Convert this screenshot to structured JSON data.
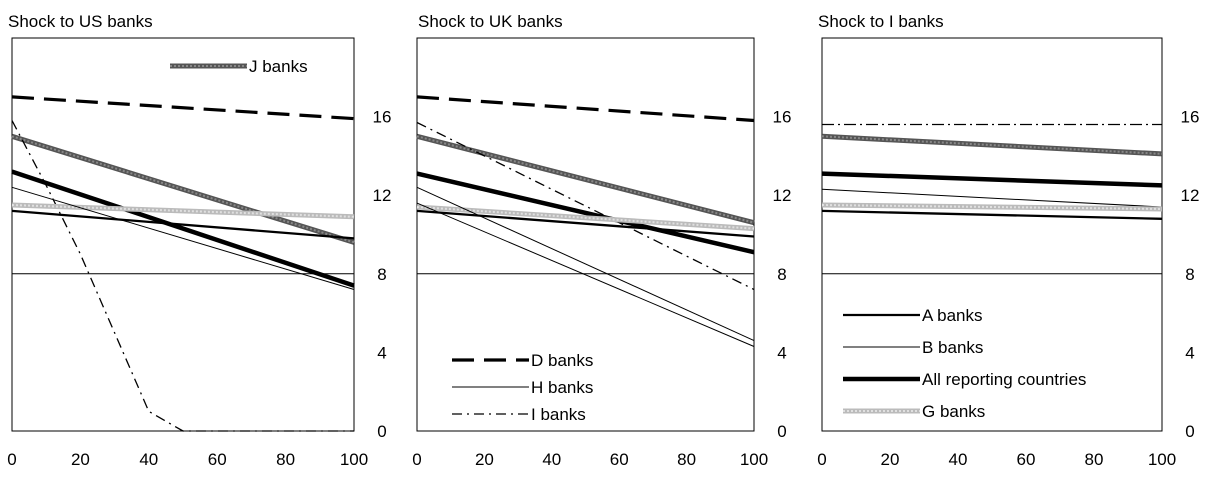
{
  "chart_data": [
    {
      "type": "line",
      "title": "Shock to US banks",
      "x_ticks": [
        0,
        20,
        40,
        60,
        80,
        100
      ],
      "y_ticks": [
        0,
        4,
        8,
        12,
        16
      ],
      "xlim": [
        0,
        100
      ],
      "ylim": [
        0,
        20
      ],
      "grid": false,
      "reference_line_y": 8,
      "legend": {
        "placement": "top-right",
        "entries": [
          "J banks"
        ]
      },
      "series": [
        {
          "name": "D banks",
          "style": "dashed",
          "x": [
            0,
            100
          ],
          "y": [
            17.0,
            15.9
          ]
        },
        {
          "name": "J banks",
          "style": "gray-thick",
          "x": [
            0,
            100
          ],
          "y": [
            15.0,
            9.6
          ]
        },
        {
          "name": "I banks",
          "style": "dashdot",
          "x": [
            0,
            10,
            20,
            30,
            40,
            50,
            60,
            80,
            100
          ],
          "y": [
            15.8,
            12.5,
            9.0,
            5.0,
            1.0,
            0.0,
            0.0,
            0.0,
            0.0
          ]
        },
        {
          "name": "All reporting countries",
          "style": "black-thick",
          "x": [
            0,
            100
          ],
          "y": [
            13.2,
            7.4
          ]
        },
        {
          "name": "G banks",
          "style": "light-gray-thick",
          "x": [
            0,
            100
          ],
          "y": [
            11.5,
            10.9
          ]
        },
        {
          "name": "B banks",
          "style": "thin",
          "x": [
            0,
            100
          ],
          "y": [
            12.4,
            7.2
          ]
        },
        {
          "name": "A banks",
          "style": "medium",
          "x": [
            0,
            100
          ],
          "y": [
            11.2,
            9.8
          ]
        }
      ]
    },
    {
      "type": "line",
      "title": "Shock to UK banks",
      "x_ticks": [
        0,
        20,
        40,
        60,
        80,
        100
      ],
      "y_ticks": [
        0,
        4,
        8,
        12,
        16
      ],
      "xlim": [
        0,
        100
      ],
      "ylim": [
        0,
        20
      ],
      "grid": false,
      "reference_line_y": 8,
      "legend": {
        "placement": "bottom-left",
        "entries": [
          "D banks",
          "H banks",
          "I banks"
        ]
      },
      "series": [
        {
          "name": "D banks",
          "style": "dashed",
          "x": [
            0,
            100
          ],
          "y": [
            17.0,
            15.8
          ]
        },
        {
          "name": "J banks",
          "style": "gray-thick",
          "x": [
            0,
            100
          ],
          "y": [
            15.0,
            10.6
          ]
        },
        {
          "name": "I banks",
          "style": "dashdot",
          "x": [
            0,
            100
          ],
          "y": [
            15.7,
            7.2
          ]
        },
        {
          "name": "All reporting countries",
          "style": "black-thick",
          "x": [
            0,
            100
          ],
          "y": [
            13.1,
            9.1
          ]
        },
        {
          "name": "G banks",
          "style": "light-gray-thick",
          "x": [
            0,
            100
          ],
          "y": [
            11.4,
            10.3
          ]
        },
        {
          "name": "A banks",
          "style": "medium",
          "x": [
            0,
            100
          ],
          "y": [
            11.2,
            9.9
          ]
        },
        {
          "name": "H banks",
          "style": "thin",
          "x": [
            0,
            100
          ],
          "y": [
            11.6,
            4.3
          ]
        },
        {
          "name": "B banks",
          "style": "thin",
          "x": [
            0,
            100
          ],
          "y": [
            12.4,
            4.6
          ]
        }
      ]
    },
    {
      "type": "line",
      "title": "Shock to I banks",
      "x_ticks": [
        0,
        20,
        40,
        60,
        80,
        100
      ],
      "y_ticks": [
        0,
        4,
        8,
        12,
        16
      ],
      "xlim": [
        0,
        100
      ],
      "ylim": [
        0,
        20
      ],
      "grid": false,
      "reference_line_y": 8,
      "legend": {
        "placement": "bottom-left",
        "entries": [
          "A banks",
          "B banks",
          "All reporting countries",
          "G banks"
        ]
      },
      "series": [
        {
          "name": "I banks",
          "style": "dashdot-thin",
          "x": [
            0,
            100
          ],
          "y": [
            15.6,
            15.6
          ]
        },
        {
          "name": "J banks",
          "style": "gray-thick",
          "x": [
            0,
            100
          ],
          "y": [
            15.0,
            14.1
          ]
        },
        {
          "name": "All reporting countries",
          "style": "black-thick",
          "x": [
            0,
            100
          ],
          "y": [
            13.1,
            12.5
          ]
        },
        {
          "name": "B banks",
          "style": "thin",
          "x": [
            0,
            100
          ],
          "y": [
            12.3,
            11.4
          ]
        },
        {
          "name": "G banks",
          "style": "light-gray-thick",
          "x": [
            0,
            100
          ],
          "y": [
            11.5,
            11.3
          ]
        },
        {
          "name": "A banks",
          "style": "medium",
          "x": [
            0,
            100
          ],
          "y": [
            11.2,
            10.8
          ]
        }
      ]
    }
  ]
}
